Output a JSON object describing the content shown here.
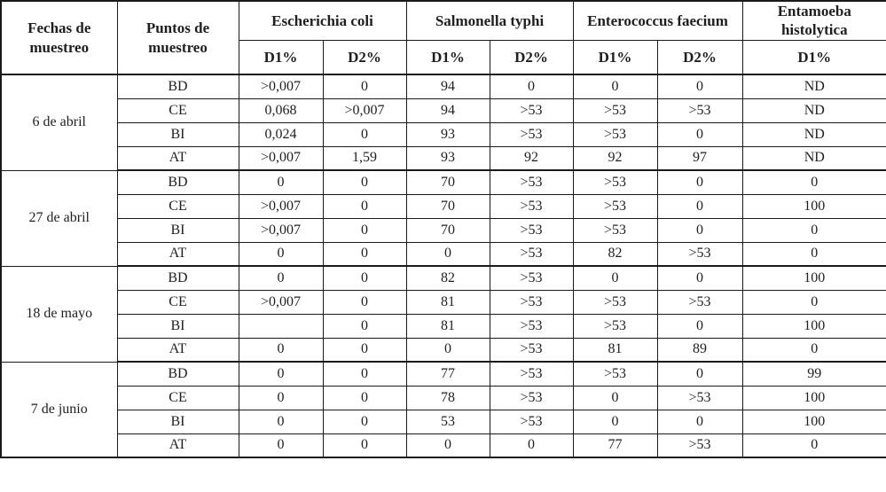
{
  "table": {
    "header": {
      "date_col": "Fechas de muestreo",
      "point_col": "Puntos de muestreo",
      "groups": [
        {
          "label": "Escherichia coli",
          "subcols": [
            "D1%",
            "D2%"
          ]
        },
        {
          "label": "Salmonella typhi",
          "subcols": [
            "D1%",
            "D2%"
          ]
        },
        {
          "label": "Enterococcus faecium",
          "subcols": [
            "D1%",
            "D2%"
          ]
        },
        {
          "label": "Entamoeba histolytica",
          "subcols": [
            "D1%"
          ]
        }
      ]
    },
    "groups": [
      {
        "date": "6 de abril",
        "rows": [
          {
            "point": "BD",
            "values": [
              ">0,007",
              "0",
              "94",
              "0",
              "0",
              "0",
              "ND"
            ]
          },
          {
            "point": "CE",
            "values": [
              "0,068",
              ">0,007",
              "94",
              ">53",
              ">53",
              ">53",
              "ND"
            ]
          },
          {
            "point": "BI",
            "values": [
              "0,024",
              "0",
              "93",
              ">53",
              ">53",
              "0",
              "ND"
            ]
          },
          {
            "point": "AT",
            "values": [
              ">0,007",
              "1,59",
              "93",
              "92",
              "92",
              "97",
              "ND"
            ]
          }
        ]
      },
      {
        "date": "27 de abril",
        "rows": [
          {
            "point": "BD",
            "values": [
              "0",
              "0",
              "70",
              ">53",
              ">53",
              "0",
              "0"
            ]
          },
          {
            "point": "CE",
            "values": [
              ">0,007",
              "0",
              "70",
              ">53",
              ">53",
              "0",
              "100"
            ]
          },
          {
            "point": "BI",
            "values": [
              ">0,007",
              "0",
              "70",
              ">53",
              ">53",
              "0",
              "0"
            ]
          },
          {
            "point": "AT",
            "values": [
              "0",
              "0",
              "0",
              ">53",
              "82",
              ">53",
              "0"
            ]
          }
        ]
      },
      {
        "date": "18 de mayo",
        "rows": [
          {
            "point": "BD",
            "values": [
              "0",
              "0",
              "82",
              ">53",
              "0",
              "0",
              "100"
            ]
          },
          {
            "point": "CE",
            "values": [
              ">0,007",
              "0",
              "81",
              ">53",
              ">53",
              ">53",
              "0"
            ]
          },
          {
            "point": "BI",
            "values": [
              "",
              "0",
              "81",
              ">53",
              ">53",
              "0",
              "100"
            ]
          },
          {
            "point": "AT",
            "values": [
              "0",
              "0",
              "0",
              ">53",
              "81",
              "89",
              "0"
            ]
          }
        ]
      },
      {
        "date": "7 de junio",
        "rows": [
          {
            "point": "BD",
            "values": [
              "0",
              "0",
              "77",
              ">53",
              ">53",
              "0",
              "99"
            ]
          },
          {
            "point": "CE",
            "values": [
              "0",
              "0",
              "78",
              ">53",
              "0",
              ">53",
              "100"
            ]
          },
          {
            "point": "BI",
            "values": [
              "0",
              "0",
              "53",
              ">53",
              "0",
              "0",
              "100"
            ]
          },
          {
            "point": "AT",
            "values": [
              "0",
              "0",
              "0",
              "0",
              "77",
              ">53",
              "0"
            ]
          }
        ]
      }
    ]
  }
}
